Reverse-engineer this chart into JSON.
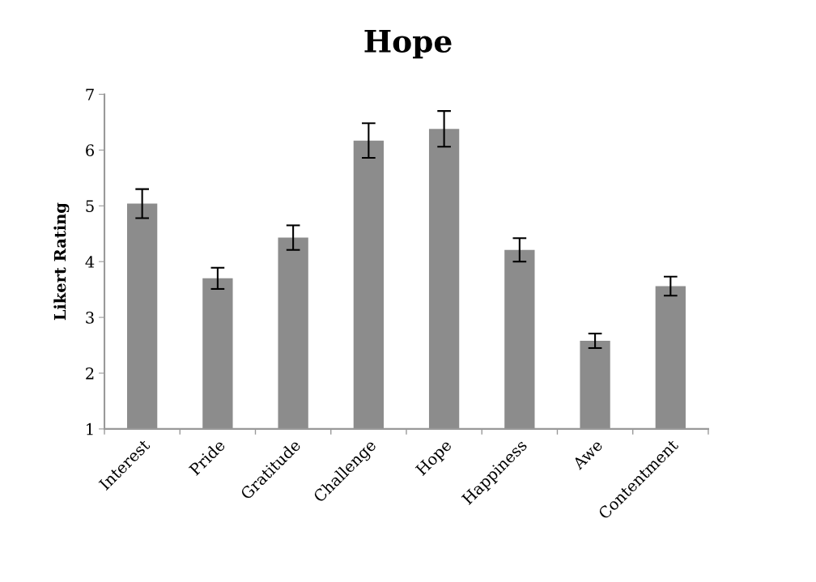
{
  "chart_data": {
    "type": "bar",
    "title": "Hope",
    "ylabel": "Likert Rating",
    "categories": [
      "Interest",
      "Pride",
      "Gratitude",
      "Challenge",
      "Hope",
      "Happiness",
      "Awe",
      "Contentment"
    ],
    "values": [
      5.04,
      3.7,
      4.43,
      6.17,
      6.38,
      4.21,
      2.58,
      3.56
    ],
    "errors": [
      0.26,
      0.19,
      0.22,
      0.31,
      0.32,
      0.21,
      0.13,
      0.17
    ],
    "color": "#8c8c8c",
    "ylim": [
      1,
      7
    ],
    "yticks": [
      1,
      2,
      3,
      4,
      5,
      6,
      7
    ]
  }
}
